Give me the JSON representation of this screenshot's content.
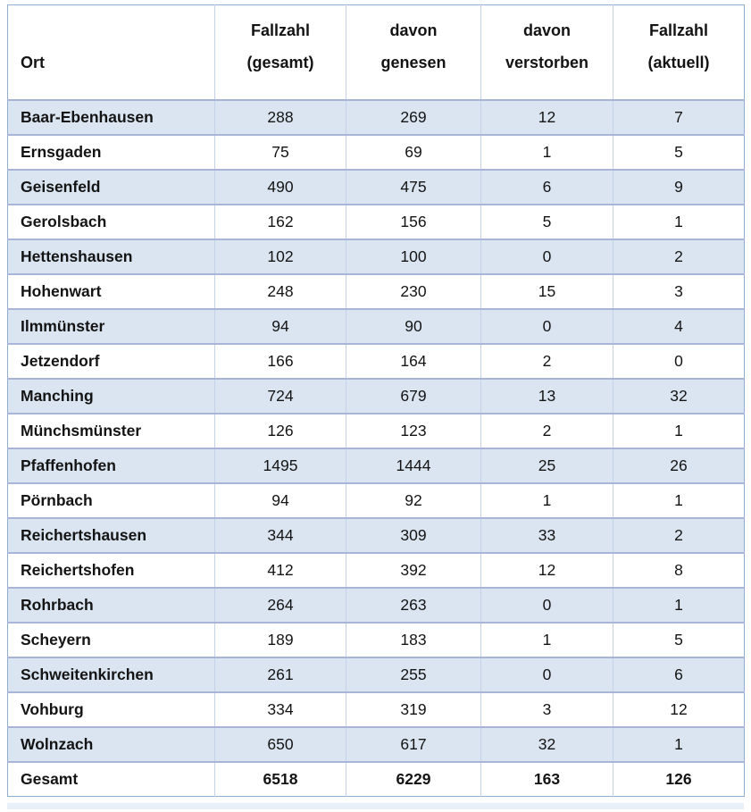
{
  "table": {
    "columns": [
      {
        "id": "ort",
        "line1": "Ort",
        "line2": ""
      },
      {
        "id": "fallzahl-gesamt",
        "line1": "Fallzahl",
        "line2": "(gesamt)"
      },
      {
        "id": "davon-genesen",
        "line1": "davon",
        "line2": "genesen"
      },
      {
        "id": "davon-verstorben",
        "line1": "davon",
        "line2": "verstorben"
      },
      {
        "id": "fallzahl-aktuell",
        "line1": "Fallzahl",
        "line2": "(aktuell)"
      }
    ],
    "rows": [
      {
        "ort": "Baar-Ebenhausen",
        "gesamt": 288,
        "genesen": 269,
        "verstorben": 12,
        "aktuell": 7
      },
      {
        "ort": "Ernsgaden",
        "gesamt": 75,
        "genesen": 69,
        "verstorben": 1,
        "aktuell": 5
      },
      {
        "ort": "Geisenfeld",
        "gesamt": 490,
        "genesen": 475,
        "verstorben": 6,
        "aktuell": 9
      },
      {
        "ort": "Gerolsbach",
        "gesamt": 162,
        "genesen": 156,
        "verstorben": 5,
        "aktuell": 1
      },
      {
        "ort": "Hettenshausen",
        "gesamt": 102,
        "genesen": 100,
        "verstorben": 0,
        "aktuell": 2
      },
      {
        "ort": "Hohenwart",
        "gesamt": 248,
        "genesen": 230,
        "verstorben": 15,
        "aktuell": 3
      },
      {
        "ort": "Ilmmünster",
        "gesamt": 94,
        "genesen": 90,
        "verstorben": 0,
        "aktuell": 4
      },
      {
        "ort": "Jetzendorf",
        "gesamt": 166,
        "genesen": 164,
        "verstorben": 2,
        "aktuell": 0
      },
      {
        "ort": "Manching",
        "gesamt": 724,
        "genesen": 679,
        "verstorben": 13,
        "aktuell": 32
      },
      {
        "ort": "Münchsmünster",
        "gesamt": 126,
        "genesen": 123,
        "verstorben": 2,
        "aktuell": 1
      },
      {
        "ort": "Pfaffenhofen",
        "gesamt": 1495,
        "genesen": 1444,
        "verstorben": 25,
        "aktuell": 26
      },
      {
        "ort": "Pörnbach",
        "gesamt": 94,
        "genesen": 92,
        "verstorben": 1,
        "aktuell": 1
      },
      {
        "ort": "Reichertshausen",
        "gesamt": 344,
        "genesen": 309,
        "verstorben": 33,
        "aktuell": 2
      },
      {
        "ort": "Reichertshofen",
        "gesamt": 412,
        "genesen": 392,
        "verstorben": 12,
        "aktuell": 8
      },
      {
        "ort": "Rohrbach",
        "gesamt": 264,
        "genesen": 263,
        "verstorben": 0,
        "aktuell": 1
      },
      {
        "ort": "Scheyern",
        "gesamt": 189,
        "genesen": 183,
        "verstorben": 1,
        "aktuell": 5
      },
      {
        "ort": "Schweitenkirchen",
        "gesamt": 261,
        "genesen": 255,
        "verstorben": 0,
        "aktuell": 6
      },
      {
        "ort": "Vohburg",
        "gesamt": 334,
        "genesen": 319,
        "verstorben": 3,
        "aktuell": 12
      },
      {
        "ort": "Wolnzach",
        "gesamt": 650,
        "genesen": 617,
        "verstorben": 32,
        "aktuell": 1
      }
    ],
    "total_row": {
      "ort": "Gesamt",
      "gesamt": 6518,
      "genesen": 6229,
      "verstorben": 163,
      "aktuell": 126
    }
  },
  "colors": {
    "row_shaded": "#dbe5f1",
    "border_outer": "#8faecf",
    "border_horizontal": "#a8b4d8",
    "border_vertical": "#c3d2e8",
    "text": "#141414"
  }
}
